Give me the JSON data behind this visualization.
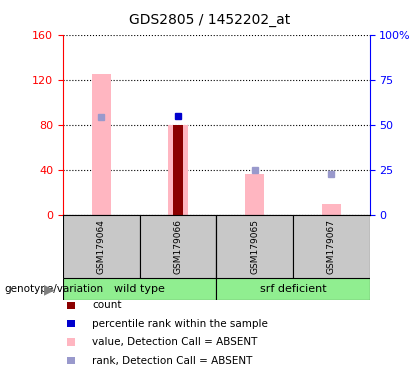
{
  "title": "GDS2805 / 1452202_at",
  "samples": [
    "GSM179064",
    "GSM179066",
    "GSM179065",
    "GSM179067"
  ],
  "left_ylim": [
    0,
    160
  ],
  "left_yticks": [
    0,
    40,
    80,
    120,
    160
  ],
  "value_bars": [
    125.0,
    80.0,
    36.0,
    10.0
  ],
  "value_bar_color": "#FFB6C1",
  "count_bar_height": 80.0,
  "count_bar_index": 1,
  "count_bar_color": "#8B0000",
  "rank_dark_index": 0,
  "rank_dark_value": 87.0,
  "rank_dark_color": "#0000CD",
  "rank_dark_index2": 1,
  "rank_dark_value2": 88.0,
  "rank_light_index": 2,
  "rank_light_value": 39.5,
  "rank_light_color": "#9999CC",
  "rank_light_index2": 3,
  "rank_light_value2": 36.0,
  "bar_width": 0.25,
  "count_bar_width": 0.12,
  "light_green": "#90EE90",
  "gray": "#C8C8C8",
  "legend_items": [
    {
      "label": "count",
      "color": "#8B0000"
    },
    {
      "label": "percentile rank within the sample",
      "color": "#0000CD"
    },
    {
      "label": "value, Detection Call = ABSENT",
      "color": "#FFB6C1"
    },
    {
      "label": "rank, Detection Call = ABSENT",
      "color": "#9999CC"
    }
  ]
}
